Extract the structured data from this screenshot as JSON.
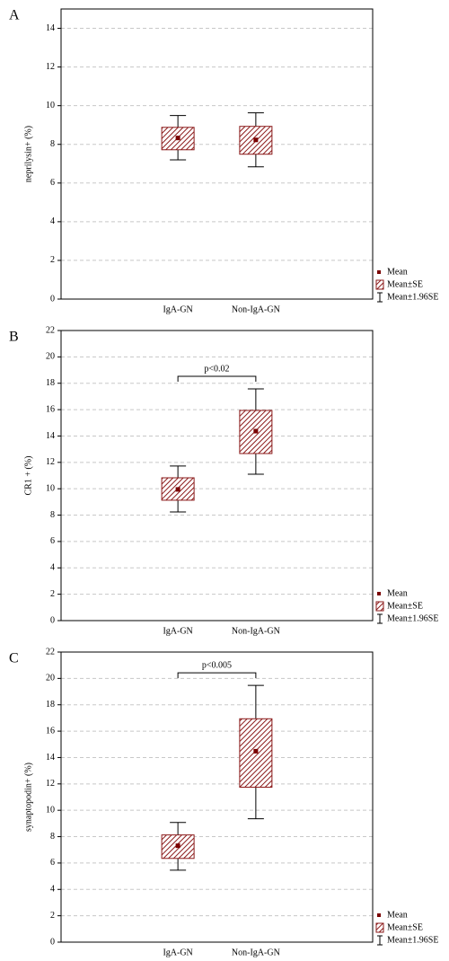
{
  "chart_data": [
    {
      "type": "box",
      "panel_label": "A",
      "ylabel": "neprilysin+ (%)",
      "categories": [
        "IgA-GN",
        "Non-IgA-GN"
      ],
      "ylim": [
        0,
        15
      ],
      "yticks": [
        0,
        2,
        4,
        6,
        8,
        10,
        12,
        14
      ],
      "grid": true,
      "series": [
        {
          "name": "Mean",
          "color": "#7a0000",
          "values": [
            8.33,
            8.23
          ]
        },
        {
          "name": "Mean±SE",
          "color": "#8b1a1a",
          "low": [
            7.72,
            7.49
          ],
          "high": [
            8.88,
            8.93
          ]
        },
        {
          "name": "Mean±1.96SE",
          "color": "#000000",
          "low": [
            7.2,
            6.84
          ],
          "high": [
            9.49,
            9.63
          ]
        }
      ]
    },
    {
      "type": "box",
      "panel_label": "B",
      "ylabel": "CR1 + (%)",
      "categories": [
        "IgA-GN",
        "Non-IgA-GN"
      ],
      "ylim": [
        0,
        22
      ],
      "yticks": [
        0,
        2,
        4,
        6,
        8,
        10,
        12,
        14,
        16,
        18,
        20,
        22
      ],
      "grid": true,
      "annotation": "p<0.02",
      "series": [
        {
          "name": "Mean",
          "color": "#7a0000",
          "values": [
            9.95,
            14.37
          ]
        },
        {
          "name": "Mean±SE",
          "color": "#8b1a1a",
          "low": [
            9.13,
            12.67
          ],
          "high": [
            10.83,
            15.94
          ]
        },
        {
          "name": "Mean±1.96SE",
          "color": "#000000",
          "low": [
            8.24,
            11.1
          ],
          "high": [
            11.72,
            17.57
          ]
        }
      ]
    },
    {
      "type": "box",
      "panel_label": "C",
      "ylabel": "synaptopodin+ (%)",
      "categories": [
        "IgA-GN",
        "Non-IgA-GN"
      ],
      "ylim": [
        0,
        22
      ],
      "yticks": [
        0,
        2,
        4,
        6,
        8,
        10,
        12,
        14,
        16,
        18,
        20,
        22
      ],
      "grid": true,
      "annotation": "p<0.005",
      "series": [
        {
          "name": "Mean",
          "color": "#7a0000",
          "values": [
            7.31,
            14.48
          ]
        },
        {
          "name": "Mean±SE",
          "color": "#8b1a1a",
          "low": [
            6.35,
            11.75
          ],
          "high": [
            8.13,
            16.94
          ]
        },
        {
          "name": "Mean±1.96SE",
          "color": "#000000",
          "low": [
            5.46,
            9.36
          ],
          "high": [
            9.08,
            19.47
          ]
        }
      ]
    }
  ]
}
